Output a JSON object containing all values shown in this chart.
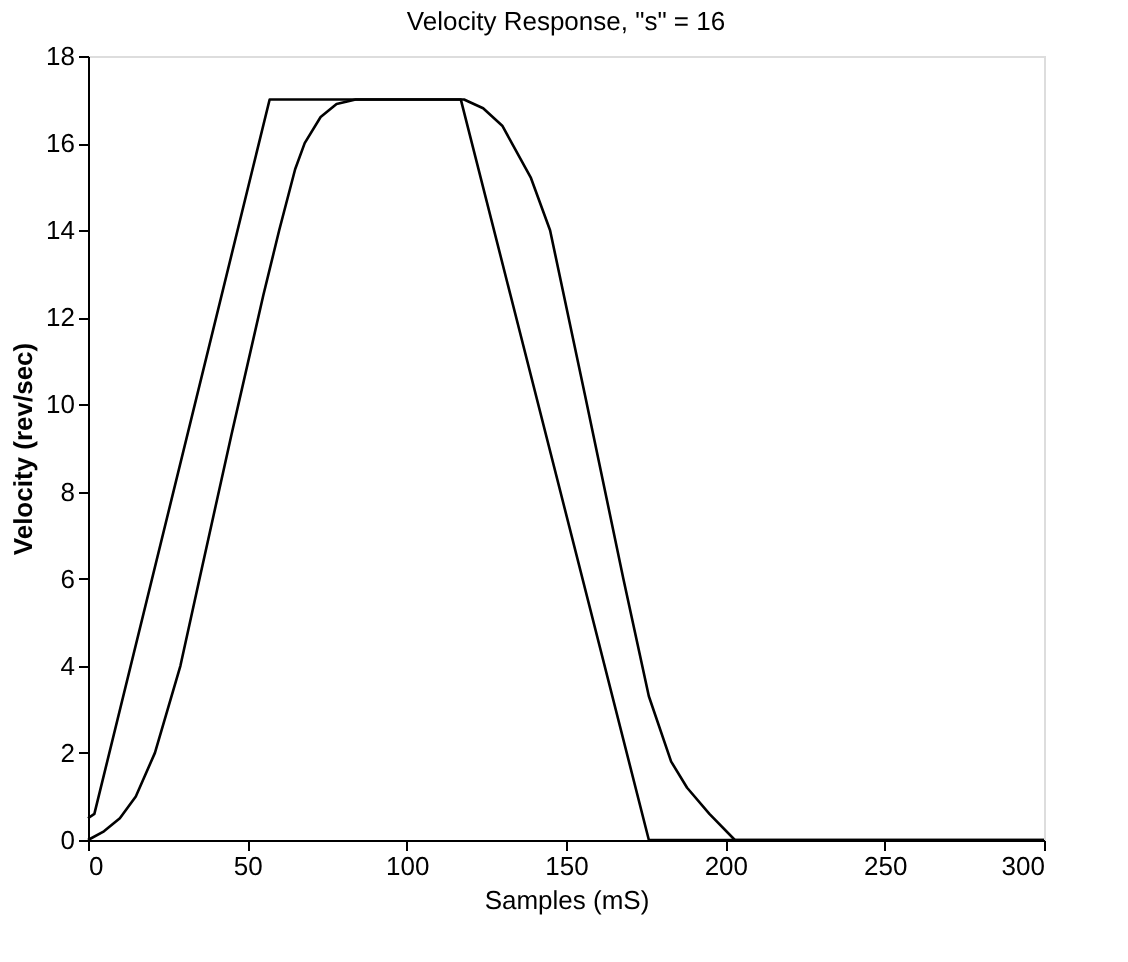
{
  "chart_data": {
    "type": "line",
    "title": "Velocity Response, \"s\" = 16",
    "xlabel": "Samples (mS)",
    "ylabel": "Velocity (rev/sec)",
    "xlim": [
      0,
      300
    ],
    "xticks": [
      0,
      50,
      100,
      150,
      200,
      250,
      300
    ],
    "ylim": [
      0,
      18
    ],
    "yticks": [
      0,
      2,
      4,
      6,
      8,
      10,
      12,
      14,
      16,
      18
    ],
    "grid": false,
    "line_style": "solid",
    "marker": "none",
    "series": [
      {
        "color": "#000000",
        "x": [
          0,
          2,
          57,
          117,
          176,
          300
        ],
        "values": [
          0.5,
          0.6,
          17,
          17,
          0,
          0
        ]
      },
      {
        "color": "#000000",
        "x": [
          0,
          5,
          10,
          15,
          21,
          25,
          29,
          35,
          45,
          55,
          60,
          65,
          68,
          73,
          78,
          84,
          118,
          124,
          130,
          133,
          139,
          145,
          156,
          168,
          176,
          183,
          188,
          195,
          203,
          300
        ],
        "values": [
          0,
          0.2,
          0.5,
          1,
          2,
          3,
          4,
          6,
          9.3,
          12.5,
          14,
          15.4,
          16,
          16.6,
          16.9,
          17,
          17,
          16.8,
          16.4,
          16,
          15.2,
          14,
          10.2,
          6,
          3.3,
          1.8,
          1.2,
          0.6,
          0,
          0
        ]
      }
    ]
  }
}
